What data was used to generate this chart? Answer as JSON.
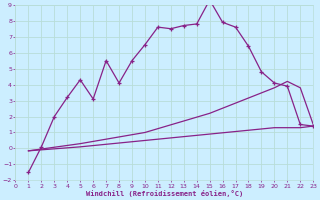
{
  "xlabel": "Windchill (Refroidissement éolien,°C)",
  "bg_color": "#cceeff",
  "grid_color": "#b8ddd8",
  "line_color": "#882288",
  "xlim": [
    0,
    23
  ],
  "ylim": [
    -2,
    9
  ],
  "xticks": [
    0,
    1,
    2,
    3,
    4,
    5,
    6,
    7,
    8,
    9,
    10,
    11,
    12,
    13,
    14,
    15,
    16,
    17,
    18,
    19,
    20,
    21,
    22,
    23
  ],
  "yticks": [
    -2,
    -1,
    0,
    1,
    2,
    3,
    4,
    5,
    6,
    7,
    8,
    9
  ],
  "series1_x": [
    1,
    2,
    3,
    4,
    5,
    6,
    7,
    8,
    9,
    10,
    11,
    12,
    13,
    14,
    15,
    16,
    17,
    18,
    19,
    20,
    21,
    22,
    23
  ],
  "series1_y": [
    -1.5,
    0.1,
    2.0,
    3.2,
    4.3,
    3.1,
    5.5,
    4.1,
    5.5,
    6.5,
    7.6,
    7.5,
    7.7,
    7.8,
    9.3,
    7.9,
    7.6,
    6.4,
    4.8,
    4.1,
    3.9,
    1.5,
    1.4
  ],
  "series2_x": [
    1,
    5,
    10,
    15,
    20,
    21,
    22,
    23
  ],
  "series2_y": [
    -0.15,
    0.3,
    1.0,
    2.2,
    3.8,
    4.2,
    3.8,
    1.5
  ],
  "series3_x": [
    1,
    5,
    10,
    15,
    20,
    21,
    22,
    23
  ],
  "series3_y": [
    -0.15,
    0.1,
    0.5,
    0.9,
    1.3,
    1.3,
    1.3,
    1.4
  ]
}
